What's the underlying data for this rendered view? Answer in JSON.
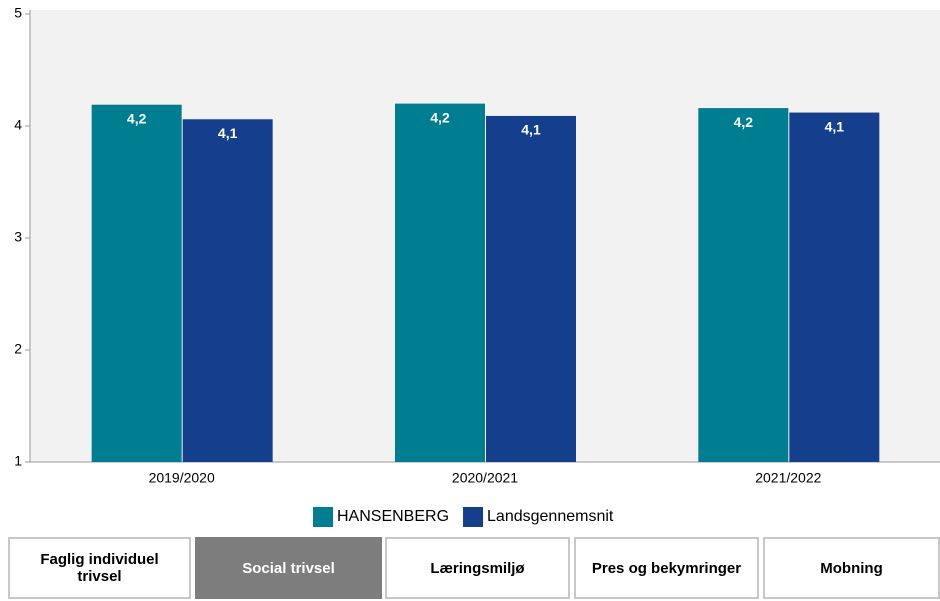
{
  "chart_data": {
    "type": "bar",
    "categories": [
      "2019/2020",
      "2020/2021",
      "2021/2022"
    ],
    "series": [
      {
        "name": "HANSENBERG",
        "color": "#007e91",
        "values": [
          4.19,
          4.2,
          4.16
        ],
        "value_labels": [
          "4,2",
          "4,2",
          "4,2"
        ]
      },
      {
        "name": "Landsgennemsnit",
        "color": "#143f8c",
        "values": [
          4.06,
          4.09,
          4.12
        ],
        "value_labels": [
          "4,1",
          "4,1",
          "4,1"
        ]
      }
    ],
    "ylim": [
      1,
      5
    ],
    "yticks": [
      1,
      2,
      3,
      4,
      5
    ],
    "legend": "bottom"
  },
  "tabs": {
    "items": [
      "Faglig individuel trivsel",
      "Social trivsel",
      "Læringsmiljø",
      "Pres og bekymringer",
      "Mobning"
    ],
    "active": 1
  }
}
